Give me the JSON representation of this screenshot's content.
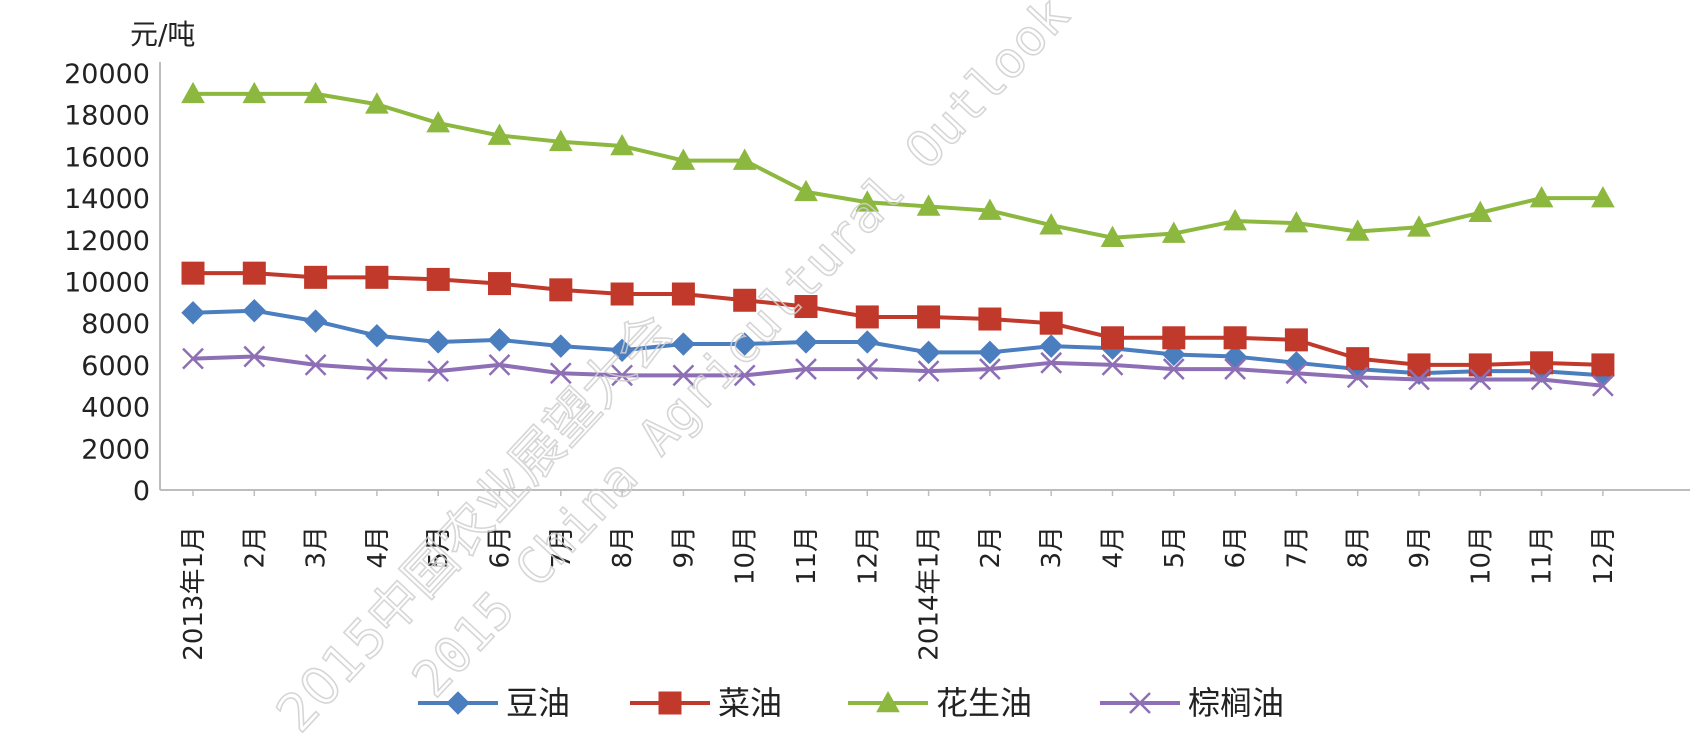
{
  "chart_data": {
    "type": "line",
    "ylabel": "元/吨",
    "ylim": [
      0,
      20000
    ],
    "yticks": [
      "0",
      "2000",
      "4000",
      "6000",
      "8000",
      "10000",
      "12000",
      "14000",
      "16000",
      "18000",
      "20000"
    ],
    "grid": false,
    "legend_position": "bottom",
    "categories": [
      "2013年1月",
      "2月",
      "3月",
      "4月",
      "5月",
      "6月",
      "7月",
      "8月",
      "9月",
      "10月",
      "11月",
      "12月",
      "2014年1月",
      "2月",
      "3月",
      "4月",
      "5月",
      "6月",
      "7月",
      "8月",
      "9月",
      "10月",
      "11月",
      "12月"
    ],
    "series": [
      {
        "name": "豆油",
        "color": "#4a7ebf",
        "marker": "diamond",
        "values": [
          8500,
          8600,
          8100,
          7400,
          7100,
          7200,
          6900,
          6700,
          7000,
          7000,
          7100,
          7100,
          6600,
          6600,
          6900,
          6800,
          6500,
          6400,
          6100,
          5800,
          5600,
          5700,
          5700,
          5500
        ]
      },
      {
        "name": "菜油",
        "color": "#c0392b",
        "marker": "square",
        "values": [
          10400,
          10400,
          10200,
          10200,
          10100,
          9900,
          9600,
          9400,
          9400,
          9100,
          8800,
          8300,
          8300,
          8200,
          8000,
          7300,
          7300,
          7300,
          7200,
          6300,
          6000,
          6000,
          6100,
          6000
        ]
      },
      {
        "name": "花生油",
        "color": "#8cb83f",
        "marker": "triangle",
        "values": [
          19000,
          19000,
          19000,
          18500,
          17600,
          17000,
          16700,
          16500,
          15800,
          15800,
          14300,
          13800,
          13600,
          13400,
          12700,
          12100,
          12300,
          12900,
          12800,
          12400,
          12600,
          13300,
          14000,
          14000
        ]
      },
      {
        "name": "棕榈油",
        "color": "#8e6fb6",
        "marker": "x",
        "values": [
          6300,
          6400,
          6000,
          5800,
          5700,
          6000,
          5600,
          5500,
          5500,
          5500,
          5800,
          5800,
          5700,
          5800,
          6100,
          6000,
          5800,
          5800,
          5600,
          5400,
          5300,
          5300,
          5300,
          5000
        ]
      }
    ]
  },
  "watermark": {
    "line1": "2015中国农业展望大会",
    "line2": "2015 China Agricultural Outlook"
  }
}
